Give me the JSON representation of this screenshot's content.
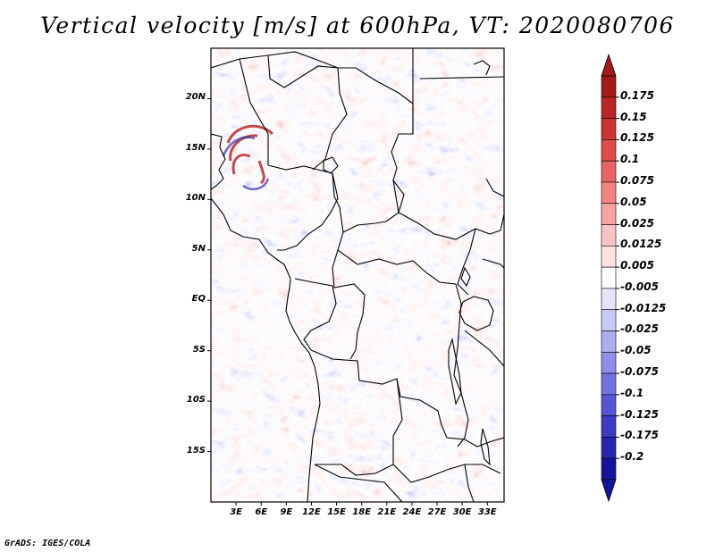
{
  "title": "Vertical velocity [m/s] at 600hPa, VT: 2020080706",
  "credit": "GrADS: IGES/COLA",
  "map": {
    "lon_range": [
      0,
      35
    ],
    "lat_range": [
      -20,
      25
    ],
    "lat_labels": [
      {
        "value": 20,
        "text": "20N"
      },
      {
        "value": 15,
        "text": "15N"
      },
      {
        "value": 10,
        "text": "10N"
      },
      {
        "value": 5,
        "text": "5N"
      },
      {
        "value": 0,
        "text": "EQ"
      },
      {
        "value": -5,
        "text": "5S"
      },
      {
        "value": -10,
        "text": "10S"
      },
      {
        "value": -15,
        "text": "15S"
      }
    ],
    "lon_labels": [
      {
        "value": 3,
        "text": "3E"
      },
      {
        "value": 6,
        "text": "6E"
      },
      {
        "value": 9,
        "text": "9E"
      },
      {
        "value": 12,
        "text": "12E"
      },
      {
        "value": 15,
        "text": "15E"
      },
      {
        "value": 18,
        "text": "18E"
      },
      {
        "value": 21,
        "text": "21E"
      },
      {
        "value": 24,
        "text": "24E"
      },
      {
        "value": 27,
        "text": "27E"
      },
      {
        "value": 30,
        "text": "30E"
      },
      {
        "value": 33,
        "text": "33E"
      }
    ]
  },
  "colorbar": {
    "labels": [
      "0.175",
      "0.15",
      "0.125",
      "0.1",
      "0.075",
      "0.05",
      "0.025",
      "0.0125",
      "0.005",
      "-0.005",
      "-0.0125",
      "-0.025",
      "-0.05",
      "-0.075",
      "-0.1",
      "-0.125",
      "-0.175",
      "-0.2"
    ],
    "colors": [
      "#a31a1a",
      "#b92626",
      "#cc3333",
      "#dd4b4b",
      "#e86565",
      "#f28484",
      "#f7a3a3",
      "#fbc4c4",
      "#fde2e2",
      "#ffffff",
      "#e4e4fb",
      "#cacaf8",
      "#adadf2",
      "#8f8fea",
      "#7272df",
      "#5656d2",
      "#3d3dc2",
      "#2626ae",
      "#14149a"
    ]
  }
}
